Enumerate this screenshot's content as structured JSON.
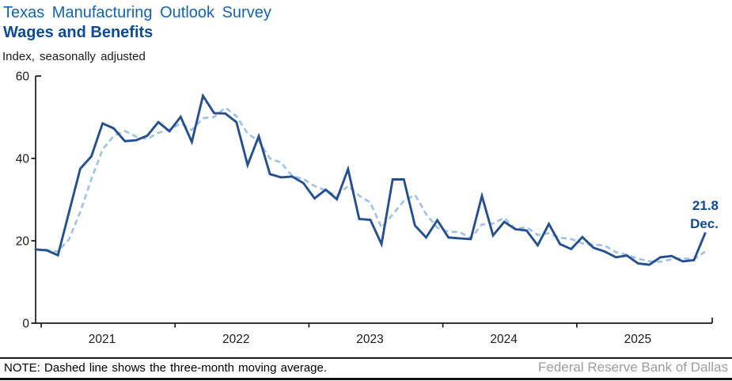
{
  "header": {
    "title": "Texas Manufacturing Outlook Survey",
    "subtitle": "Wages and Benefits",
    "units_label": "Index, seasonally adjusted"
  },
  "chart_data": {
    "type": "line",
    "title": "Texas Manufacturing Outlook Survey",
    "subtitle": "Wages and Benefits",
    "ylabel": "Index, seasonally adjusted",
    "xlabel": "",
    "ylim": [
      0,
      60
    ],
    "yticks": [
      0,
      20,
      40,
      60
    ],
    "xticklabels": [
      "2021",
      "2022",
      "2023",
      "2024",
      "2025"
    ],
    "grid": false,
    "legend": "none (dashed-line explained in footer note)",
    "x_freq": "monthly",
    "months": [
      "2020-12",
      "2021-01",
      "2021-02",
      "2021-03",
      "2021-04",
      "2021-05",
      "2021-06",
      "2021-07",
      "2021-08",
      "2021-09",
      "2021-10",
      "2021-11",
      "2021-12",
      "2022-01",
      "2022-02",
      "2022-03",
      "2022-04",
      "2022-05",
      "2022-06",
      "2022-07",
      "2022-08",
      "2022-09",
      "2022-10",
      "2022-11",
      "2022-12",
      "2023-01",
      "2023-02",
      "2023-03",
      "2023-04",
      "2023-05",
      "2023-06",
      "2023-07",
      "2023-08",
      "2023-09",
      "2023-10",
      "2023-11",
      "2023-12",
      "2024-01",
      "2024-02",
      "2024-03",
      "2024-04",
      "2024-05",
      "2024-06",
      "2024-07",
      "2024-08",
      "2024-09",
      "2024-10",
      "2024-11",
      "2024-12",
      "2025-01",
      "2025-02",
      "2025-03",
      "2025-04",
      "2025-05",
      "2025-06",
      "2025-07",
      "2025-08",
      "2025-09",
      "2025-10",
      "2025-11",
      "2025-12"
    ],
    "series": [
      {
        "name": "Wages and benefits index (monthly)",
        "style": "solid",
        "values": [
          17.9,
          17.7,
          16.5,
          27.0,
          37.5,
          40.5,
          48.5,
          47.3,
          44.2,
          44.4,
          45.5,
          48.8,
          46.6,
          50.1,
          44.0,
          55.2,
          51.0,
          50.9,
          48.8,
          38.4,
          45.4,
          36.2,
          35.4,
          35.6,
          34.0,
          30.3,
          32.4,
          30.1,
          37.4,
          25.3,
          25.1,
          19.2,
          34.9,
          34.9,
          23.7,
          20.8,
          25.0,
          20.8,
          20.6,
          20.4,
          30.9,
          21.3,
          24.6,
          22.8,
          22.5,
          18.9,
          24.1,
          19.2,
          18.0,
          20.9,
          18.3,
          17.4,
          16.0,
          16.4,
          14.5,
          14.2,
          16.0,
          16.3,
          15.0,
          15.3,
          21.8
        ]
      },
      {
        "name": "Three-month moving average",
        "style": "dashed",
        "derived": "trailing 3-month mean of the monthly index"
      }
    ],
    "annotation": {
      "value_label": "21.8",
      "period_label": "Dec."
    },
    "colors": {
      "title": "#1563ae",
      "subtitle": "#0e4a96",
      "solid_line": "#254f8f",
      "dashed_line": "#9fc1e6",
      "axis": "#1a1a1a",
      "annotation": "#0e4a96",
      "source_text": "#9c9c9c"
    }
  },
  "footer": {
    "note": "NOTE: Dashed line shows the three-month moving average.",
    "source": "Federal Reserve Bank of Dallas"
  }
}
